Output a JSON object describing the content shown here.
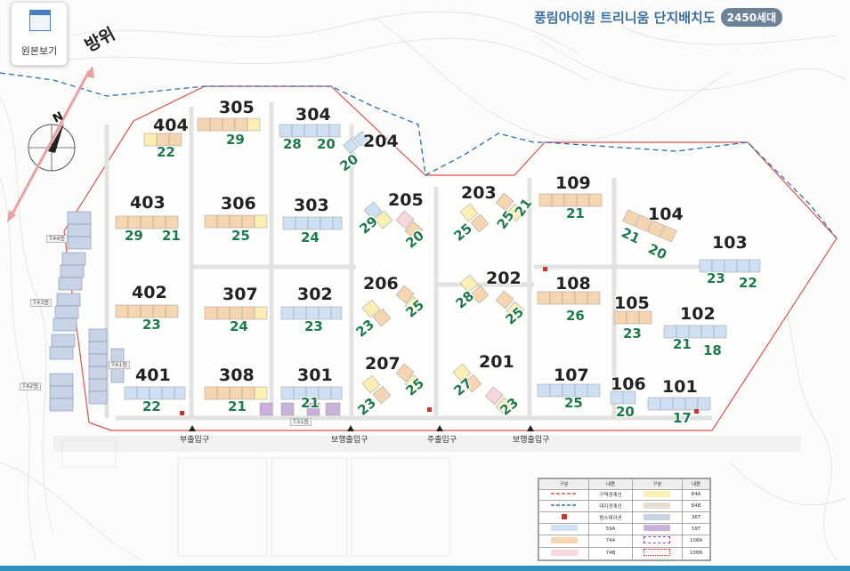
{
  "header": {
    "title": "풍림아이원 트리니움 단지배치도",
    "badge": "2450세대",
    "original_view_button": "원본보기",
    "direction_label": "방위",
    "north_symbol": "N"
  },
  "gates": [
    "부출입구",
    "보행출입구",
    "주출입구",
    "보행출입구"
  ],
  "buildings": [
    {
      "number": "404",
      "floors": "22"
    },
    {
      "number": "305",
      "floors": "29"
    },
    {
      "number": "304",
      "floors": [
        "28",
        "20"
      ]
    },
    {
      "number": "204",
      "floors": "20"
    },
    {
      "number": "403",
      "floors": [
        "29",
        "21"
      ]
    },
    {
      "number": "306",
      "floors": "25"
    },
    {
      "number": "303",
      "floors": "24"
    },
    {
      "number": "205",
      "floors": [
        "29",
        "20"
      ]
    },
    {
      "number": "203",
      "floors": [
        "25",
        "25",
        "21"
      ]
    },
    {
      "number": "109",
      "floors": "21"
    },
    {
      "number": "104",
      "floors": [
        "21",
        "20"
      ]
    },
    {
      "number": "103",
      "floors": [
        "23",
        "22"
      ]
    },
    {
      "number": "402",
      "floors": "23"
    },
    {
      "number": "307",
      "floors": "24"
    },
    {
      "number": "302",
      "floors": "23"
    },
    {
      "number": "206",
      "floors": [
        "25",
        "23"
      ]
    },
    {
      "number": "202",
      "floors": [
        "28",
        "25"
      ]
    },
    {
      "number": "108",
      "floors": "26"
    },
    {
      "number": "105",
      "floors": "23"
    },
    {
      "number": "102",
      "floors": [
        "21",
        "18"
      ]
    },
    {
      "number": "401",
      "floors": "22"
    },
    {
      "number": "308",
      "floors": "21"
    },
    {
      "number": "301",
      "floors": "21"
    },
    {
      "number": "207",
      "floors": [
        "25",
        "23"
      ]
    },
    {
      "number": "201",
      "floors": [
        "27",
        "23"
      ]
    },
    {
      "number": "107",
      "floors": "25"
    },
    {
      "number": "106",
      "floors": "20"
    },
    {
      "number": "101",
      "floors": "17"
    }
  ],
  "towers": [
    "T44동",
    "T43동",
    "T41동",
    "T42동",
    "T31동"
  ],
  "legend": {
    "headers": [
      "구분",
      "내용",
      "구분",
      "내용"
    ],
    "rows": [
      {
        "left": "구역경계선",
        "right": "84A"
      },
      {
        "left": "대지경계선",
        "right": "84B"
      },
      {
        "left": "펌스테이션",
        "right": "36T"
      },
      {
        "left": "59A",
        "right": "59T"
      },
      {
        "left": "74A",
        "right": "108A"
      },
      {
        "left": "74B",
        "right": "108B"
      }
    ],
    "colors": {
      "zone_line": "#d9534f",
      "site_line": "#2a6db0",
      "pump": "#c0392b",
      "59A": "#cfe0f2",
      "74A": "#f6d6b0",
      "74B": "#f9d5dc",
      "84A": "#fbefb2",
      "84B": "#e6e0d2",
      "36T": "#c9d3e6",
      "59T": "#c9b1da"
    }
  }
}
